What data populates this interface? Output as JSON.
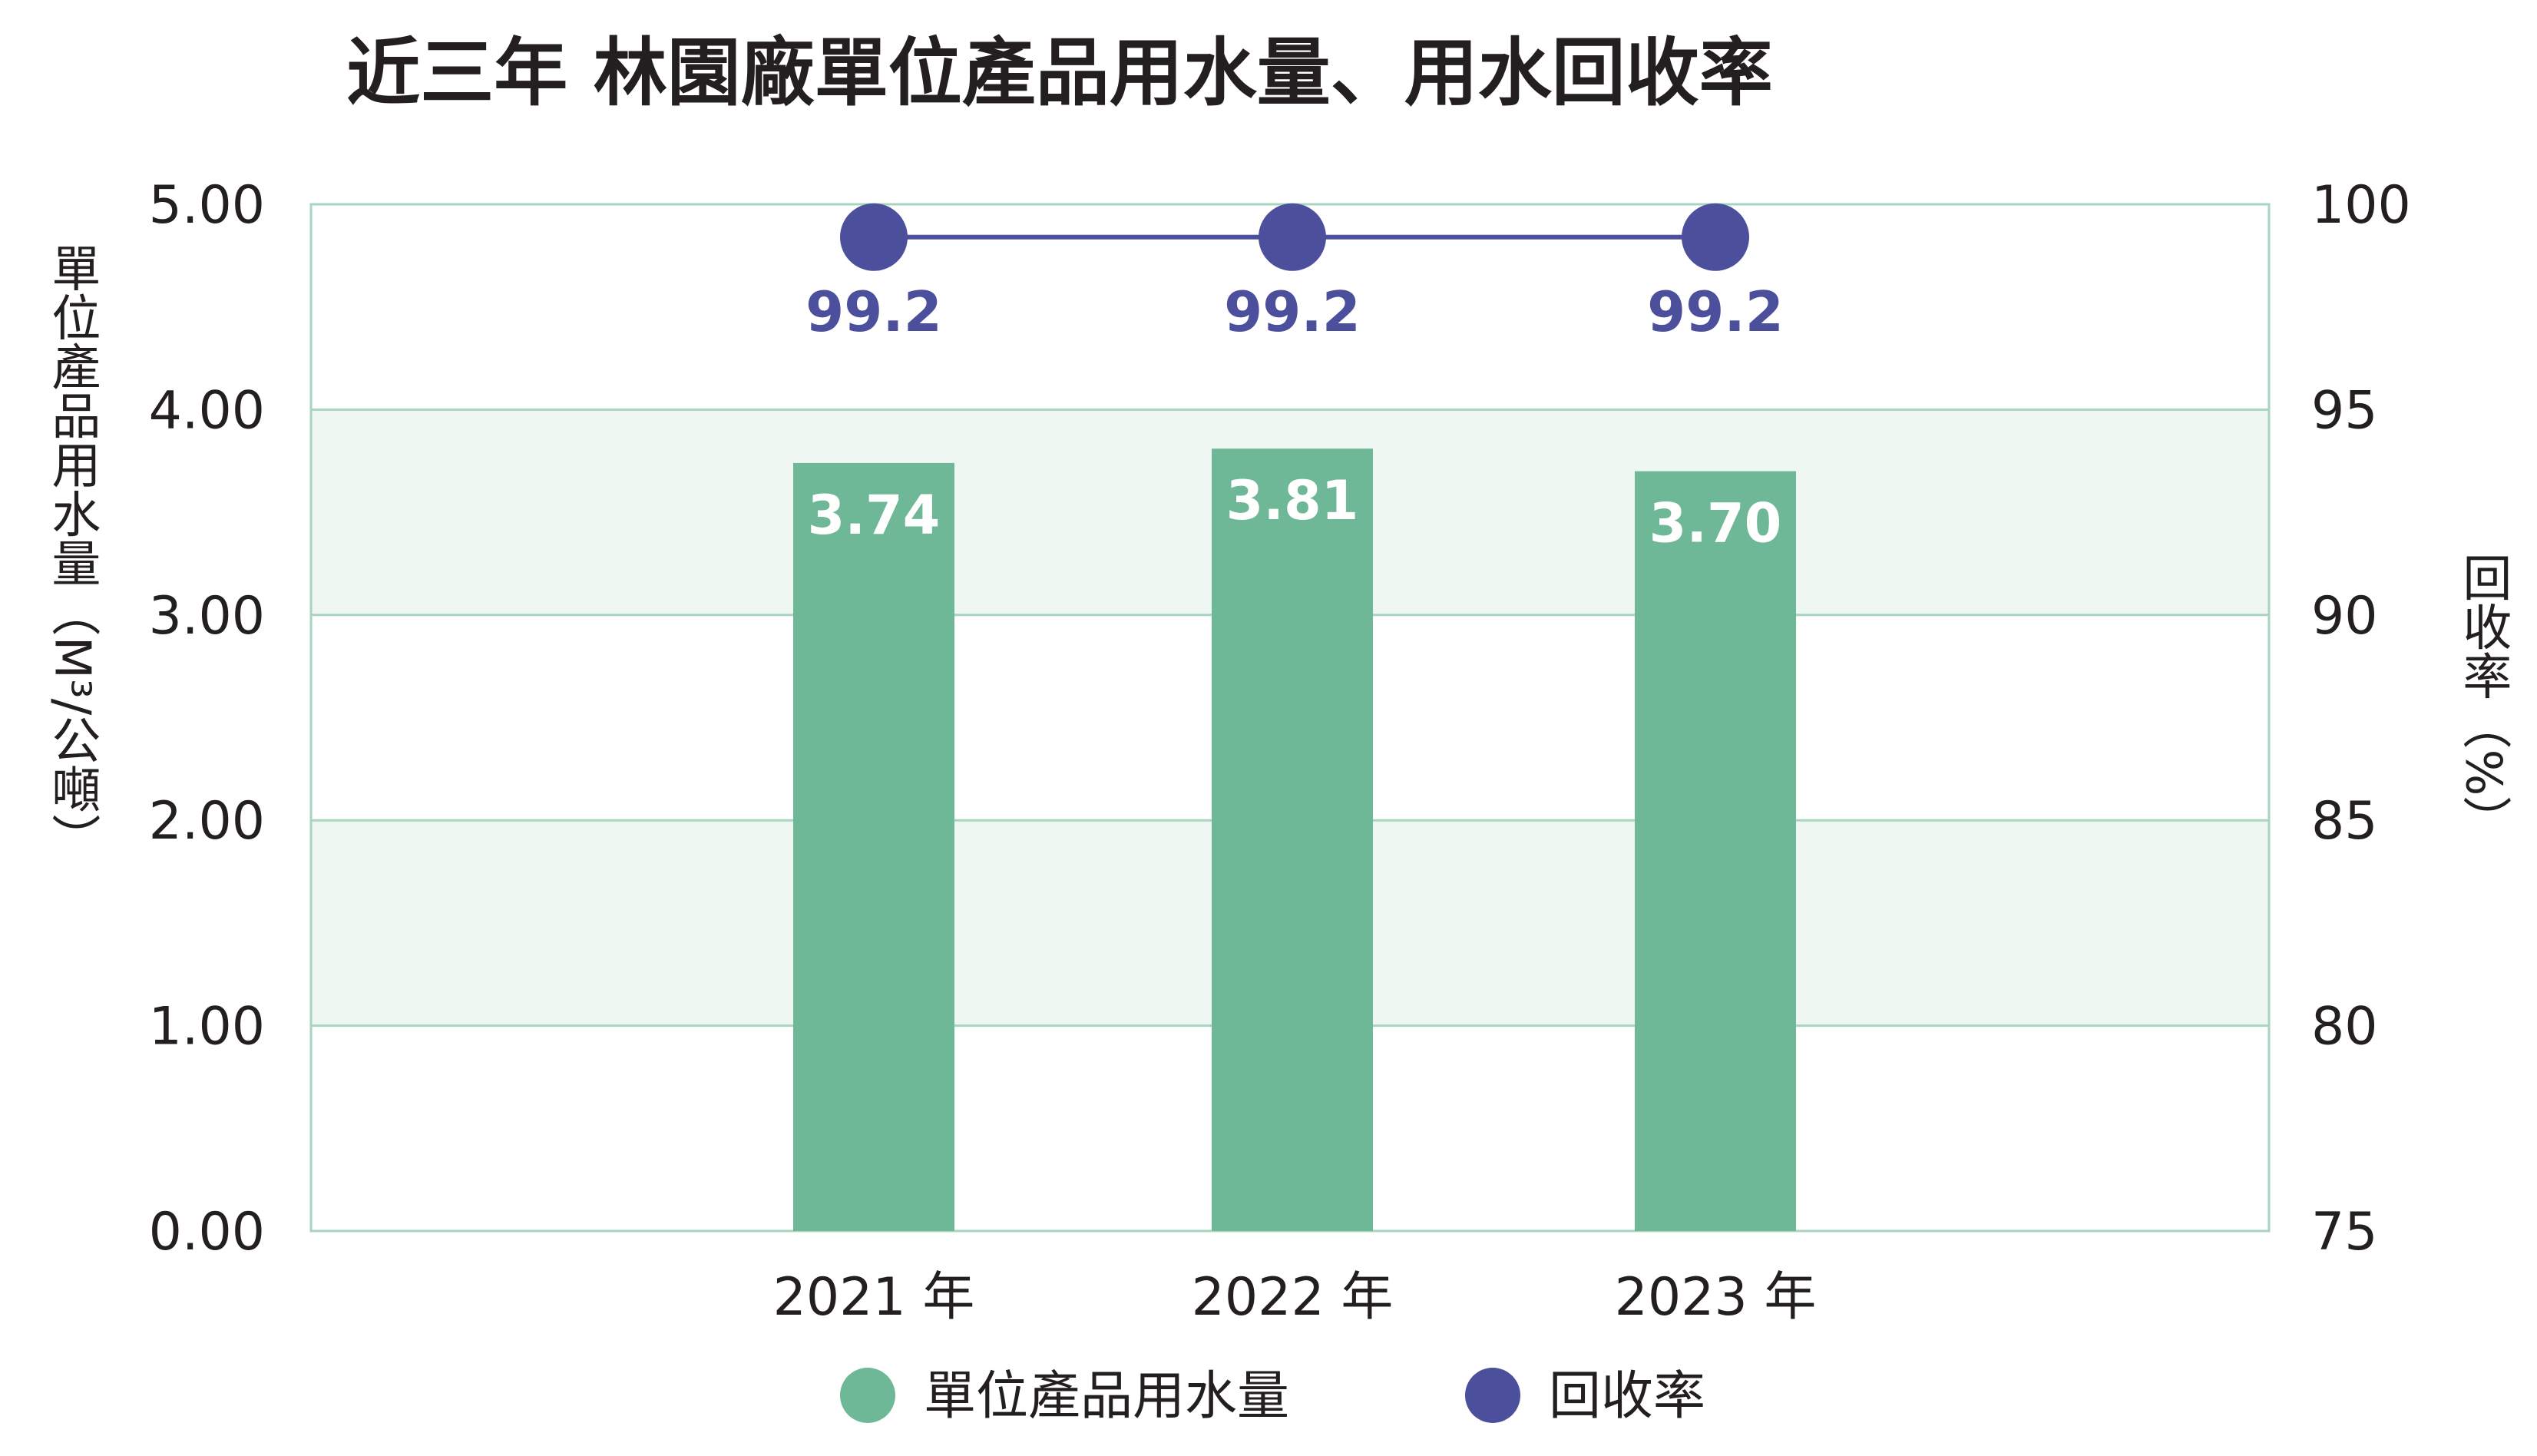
{
  "chart_data": {
    "type": "bar",
    "title": "近三年 林園廠單位產品用水量、用水回收率",
    "categories": [
      "2021 年",
      "2022 年",
      "2023 年"
    ],
    "series": [
      {
        "name": "單位產品用水量",
        "type": "bar",
        "axis": "left",
        "values": [
          3.74,
          3.81,
          3.7
        ],
        "labels": [
          "3.74",
          "3.81",
          "3.70"
        ],
        "color": "#6fb897"
      },
      {
        "name": "回收率",
        "type": "line",
        "axis": "right",
        "values": [
          99.2,
          99.2,
          99.2
        ],
        "labels": [
          "99.2",
          "99.2",
          "99.2"
        ],
        "color": "#4b4f9c"
      }
    ],
    "ylabel": "單位產品用水量（M³/公噸）",
    "ylabel_text": "單位產品用水量",
    "ylabel_unit": "（M³/公噸）",
    "y2label": "回收率（%）",
    "y2label_text": "回收率",
    "y2label_unit": "（%）",
    "ylim": [
      0,
      5
    ],
    "y2lim": [
      75,
      100
    ],
    "yticks": [
      "0.00",
      "1.00",
      "2.00",
      "3.00",
      "4.00",
      "5.00"
    ],
    "y2ticks": [
      "75",
      "80",
      "85",
      "90",
      "95",
      "100"
    ],
    "legend_position": "bottom",
    "band_color": "#eef7f2",
    "grid_color": "#a8d5bf"
  }
}
